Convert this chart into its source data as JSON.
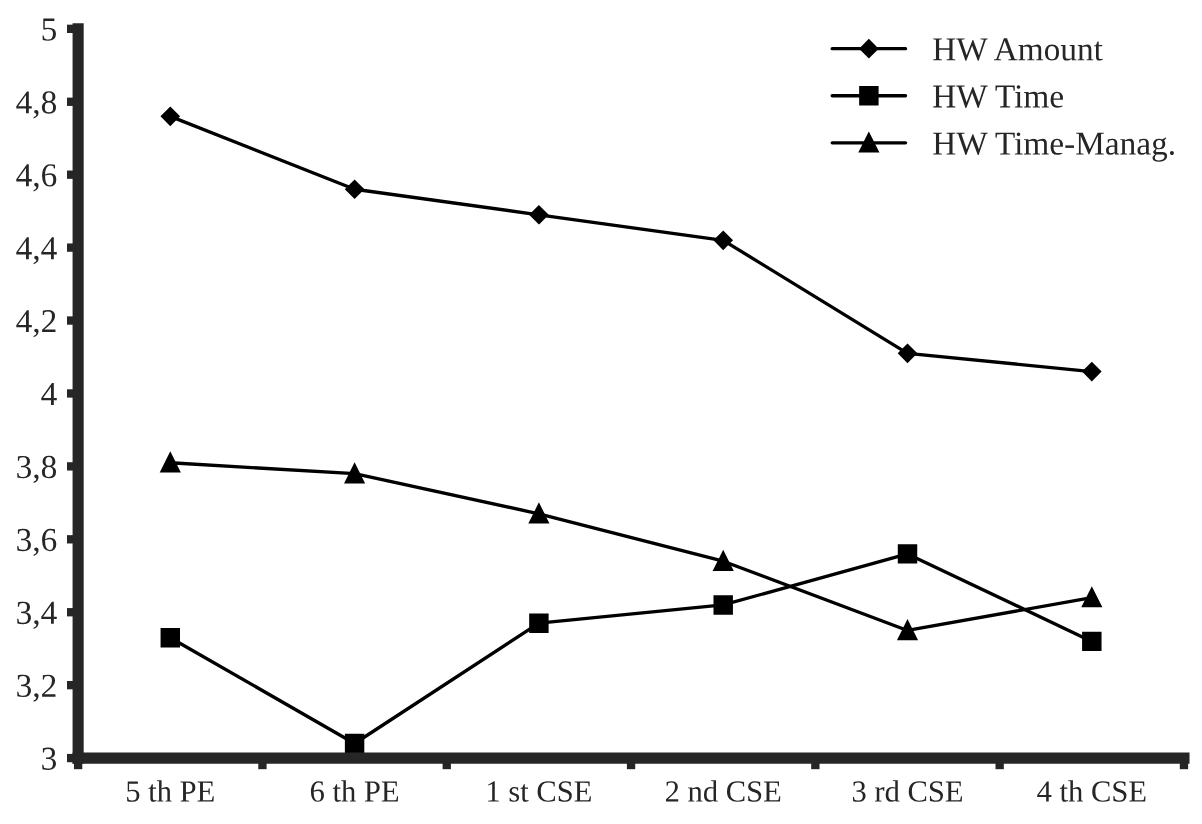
{
  "chart_data": {
    "type": "line",
    "categories": [
      "5 th PE",
      "6 th PE",
      "1 st CSE",
      "2 nd CSE",
      "3 rd CSE",
      "4 th CSE"
    ],
    "series": [
      {
        "name": "HW Amount",
        "color": "#000000",
        "marker": "diamond",
        "values": [
          4.76,
          4.56,
          4.49,
          4.42,
          4.11,
          4.06
        ]
      },
      {
        "name": "HW Time",
        "color": "#000000",
        "marker": "square",
        "values": [
          3.33,
          3.04,
          3.37,
          3.42,
          3.56,
          3.32
        ]
      },
      {
        "name": "HW Time-Manag.",
        "color": "#000000",
        "marker": "triangle",
        "values": [
          3.81,
          3.78,
          3.67,
          3.54,
          3.35,
          3.44
        ]
      }
    ],
    "ylim": [
      3,
      5
    ],
    "yticks": [
      3,
      {
        "value": 3.2,
        "label": "3,2"
      },
      {
        "value": 3.4,
        "label": "3,4"
      },
      {
        "value": 3.6,
        "label": "3,6"
      },
      {
        "value": 3.8,
        "label": "3,8"
      },
      4,
      {
        "value": 4.2,
        "label": "4,2"
      },
      {
        "value": 4.4,
        "label": "4,4"
      },
      {
        "value": 4.6,
        "label": "4,6"
      },
      {
        "value": 4.8,
        "label": "4,8"
      },
      5
    ],
    "grid": false,
    "legend": "top right",
    "line_style": "solid"
  }
}
